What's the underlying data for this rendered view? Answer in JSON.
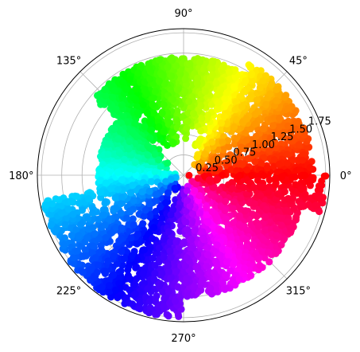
{
  "chart_data": {
    "type": "scatter",
    "projection": "polar",
    "title": "",
    "color_mapping": "hsv hue by angle",
    "grid": true,
    "rlim": [
      0,
      1.8
    ],
    "r_ticks": [
      0.25,
      0.5,
      0.75,
      1.0,
      1.25,
      1.5,
      1.75
    ],
    "r_tick_labels": [
      "0.25",
      "0.50",
      "0.75",
      "1.00",
      "1.25",
      "1.50",
      "1.75"
    ],
    "r_label_angle_deg": 22.5,
    "theta_ticks_deg": [
      0,
      45,
      90,
      135,
      180,
      225,
      270,
      315
    ],
    "theta_tick_labels": [
      "0°",
      "45°",
      "90°",
      "135°",
      "180°",
      "225°",
      "270°",
      "315°"
    ],
    "clusters": [
      {
        "theta_deg": [
          0,
          60
        ],
        "r": [
          0.15,
          1.6
        ]
      },
      {
        "theta_deg": [
          60,
          140
        ],
        "r": [
          0.35,
          1.45
        ]
      },
      {
        "theta_deg": [
          140,
          170
        ],
        "r": [
          0.2,
          1.05
        ]
      },
      {
        "theta_deg": [
          172,
          190
        ],
        "r": [
          0.05,
          1.05
        ]
      },
      {
        "theta_deg": [
          190,
          270
        ],
        "r": [
          0.05,
          1.75
        ]
      },
      {
        "theta_deg": [
          270,
          345
        ],
        "r": [
          0.05,
          1.5
        ]
      },
      {
        "theta_deg": [
          345,
          360
        ],
        "r": [
          0.05,
          1.75
        ]
      }
    ]
  }
}
